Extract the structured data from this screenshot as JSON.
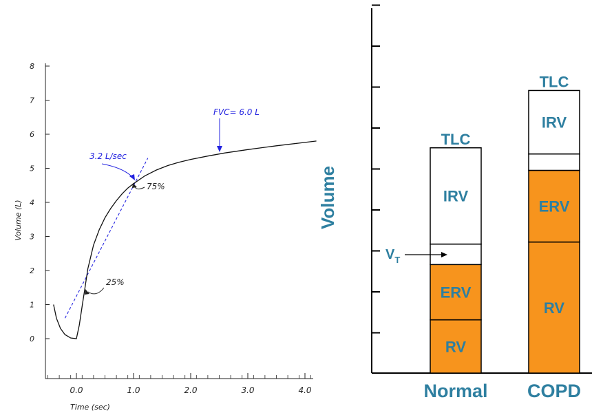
{
  "chart_data": [
    {
      "type": "line",
      "xlabel": "Time (sec)",
      "ylabel": "Volume (L)",
      "xlim": [
        -0.5,
        4.2
      ],
      "ylim": [
        0,
        8
      ],
      "x_ticks": [
        0,
        1,
        2,
        3,
        4
      ],
      "x_tick_labels": [
        "0.0",
        "1.0",
        "2.0",
        "3.0",
        "4.0"
      ],
      "y_ticks": [
        0,
        1,
        2,
        3,
        4,
        5,
        6,
        7,
        8
      ],
      "y_tick_labels": [
        "0",
        "1",
        "2",
        "3",
        "4",
        "5",
        "6",
        "7",
        "8"
      ],
      "grid": false,
      "series": [
        {
          "x": [
            -0.4,
            -0.35,
            -0.28,
            -0.2,
            -0.1,
            0.0,
            0.05,
            0.1,
            0.15,
            0.2,
            0.3,
            0.4,
            0.5,
            0.6,
            0.7,
            0.8,
            0.9,
            1.0,
            1.2,
            1.4,
            1.6,
            1.8,
            2.0,
            2.3,
            2.6,
            3.0,
            3.5,
            4.0,
            4.2
          ],
          "y": [
            1.0,
            0.6,
            0.3,
            0.12,
            0.02,
            0.0,
            0.4,
            0.95,
            1.5,
            2.05,
            2.75,
            3.2,
            3.55,
            3.82,
            4.05,
            4.25,
            4.42,
            4.55,
            4.78,
            4.95,
            5.08,
            5.18,
            5.26,
            5.36,
            5.45,
            5.55,
            5.66,
            5.76,
            5.8
          ]
        }
      ],
      "tangent_line": {
        "x": [
          -0.2,
          1.25
        ],
        "y": [
          0.6,
          5.3
        ],
        "color": "#2323e0"
      },
      "annotations": {
        "slope_label": "3.2 L/sec",
        "fvc_label": "FVC= 6.0 L",
        "pct25_label": "25%",
        "pct75_label": "75%"
      }
    },
    {
      "type": "bar",
      "ylabel": "Volume",
      "categories": [
        "Normal",
        "COPD"
      ],
      "stacked": true,
      "segments": [
        {
          "name": "RV",
          "label": "RV",
          "values": [
            1.3,
            3.2
          ],
          "color": "#f7941d"
        },
        {
          "name": "ERV",
          "label": "ERV",
          "values": [
            1.35,
            1.75
          ],
          "color": "#f7941d"
        },
        {
          "name": "VT",
          "label": "",
          "values": [
            0.5,
            0.4
          ],
          "color": "#ffffff"
        },
        {
          "name": "IRV",
          "label": "IRV",
          "values": [
            2.35,
            1.55
          ],
          "color": "#ffffff"
        }
      ],
      "total_label": "TLC",
      "vt_label": {
        "main": "V",
        "sub": "T"
      },
      "ylim": [
        0,
        9
      ],
      "ytick_count": 9,
      "label_color": "#2e7fa0"
    }
  ]
}
